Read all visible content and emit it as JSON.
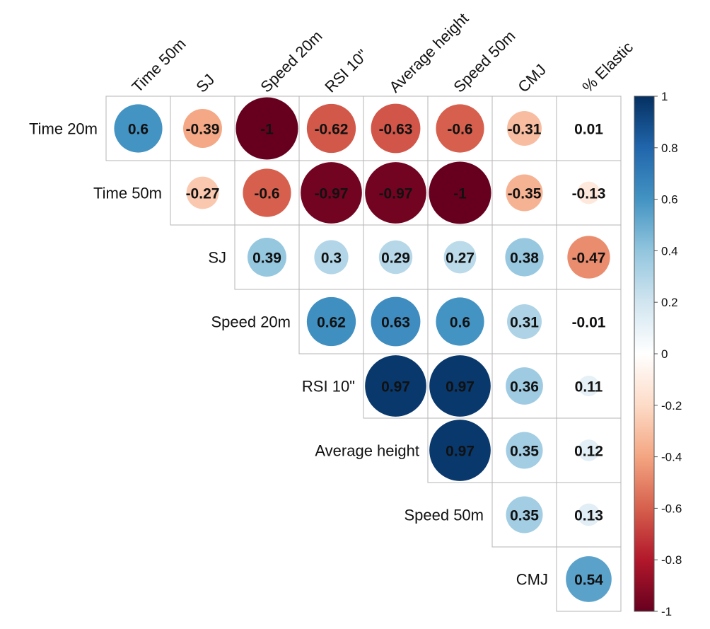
{
  "chart_data": {
    "type": "heatmap",
    "style": "correlation matrix (upper triangle, circle glyphs)",
    "columns": [
      "Time 50m",
      "SJ",
      "Speed 20m",
      "RSI 10\"",
      "Average height",
      "Speed 50m",
      "CMJ",
      "% Elastic"
    ],
    "rows": [
      "Time 20m",
      "Time 50m",
      "SJ",
      "Speed 20m",
      "RSI 10\"",
      "Average height",
      "Speed 50m",
      "CMJ"
    ],
    "values": [
      [
        0.6,
        -0.39,
        -1,
        -0.62,
        -0.63,
        -0.6,
        -0.31,
        0.01
      ],
      [
        null,
        -0.27,
        -0.6,
        -0.97,
        -0.97,
        -1,
        -0.35,
        -0.13
      ],
      [
        null,
        null,
        0.39,
        0.3,
        0.29,
        0.27,
        0.38,
        -0.47
      ],
      [
        null,
        null,
        null,
        0.62,
        0.63,
        0.6,
        0.31,
        -0.01
      ],
      [
        null,
        null,
        null,
        null,
        0.97,
        0.97,
        0.36,
        0.11
      ],
      [
        null,
        null,
        null,
        null,
        null,
        0.97,
        0.35,
        0.12
      ],
      [
        null,
        null,
        null,
        null,
        null,
        null,
        0.35,
        0.13
      ],
      [
        null,
        null,
        null,
        null,
        null,
        null,
        null,
        0.54
      ]
    ],
    "labels": [
      [
        "0.6",
        "-0.39",
        "-1",
        "-0.62",
        "-0.63",
        "-0.6",
        "-0.31",
        "0.01"
      ],
      [
        null,
        "-0.27",
        "-0.6",
        "-0.97",
        "-0.97",
        "-1",
        "-0.35",
        "-0.13"
      ],
      [
        null,
        null,
        "0.39",
        "0.3",
        "0.29",
        "0.27",
        "0.38",
        "-0.47"
      ],
      [
        null,
        null,
        null,
        "0.62",
        "0.63",
        "0.6",
        "0.31",
        "-0.01"
      ],
      [
        null,
        null,
        null,
        null,
        "0.97",
        "0.97",
        "0.36",
        "0.11"
      ],
      [
        null,
        null,
        null,
        null,
        null,
        "0.97",
        "0.35",
        "0.12"
      ],
      [
        null,
        null,
        null,
        null,
        null,
        null,
        "0.35",
        "0.13"
      ],
      [
        null,
        null,
        null,
        null,
        null,
        null,
        null,
        "0.54"
      ]
    ],
    "colorbar": {
      "range": [
        -1,
        1
      ],
      "ticks": [
        "1",
        "0.8",
        "0.6",
        "0.4",
        "0.2",
        "0",
        "-0.2",
        "-0.4",
        "-0.6",
        "-0.8",
        "-1"
      ],
      "colors": {
        "negative": "#b2182b",
        "zero": "#ffffff",
        "positive": "#2166ac"
      },
      "position": "right"
    }
  }
}
